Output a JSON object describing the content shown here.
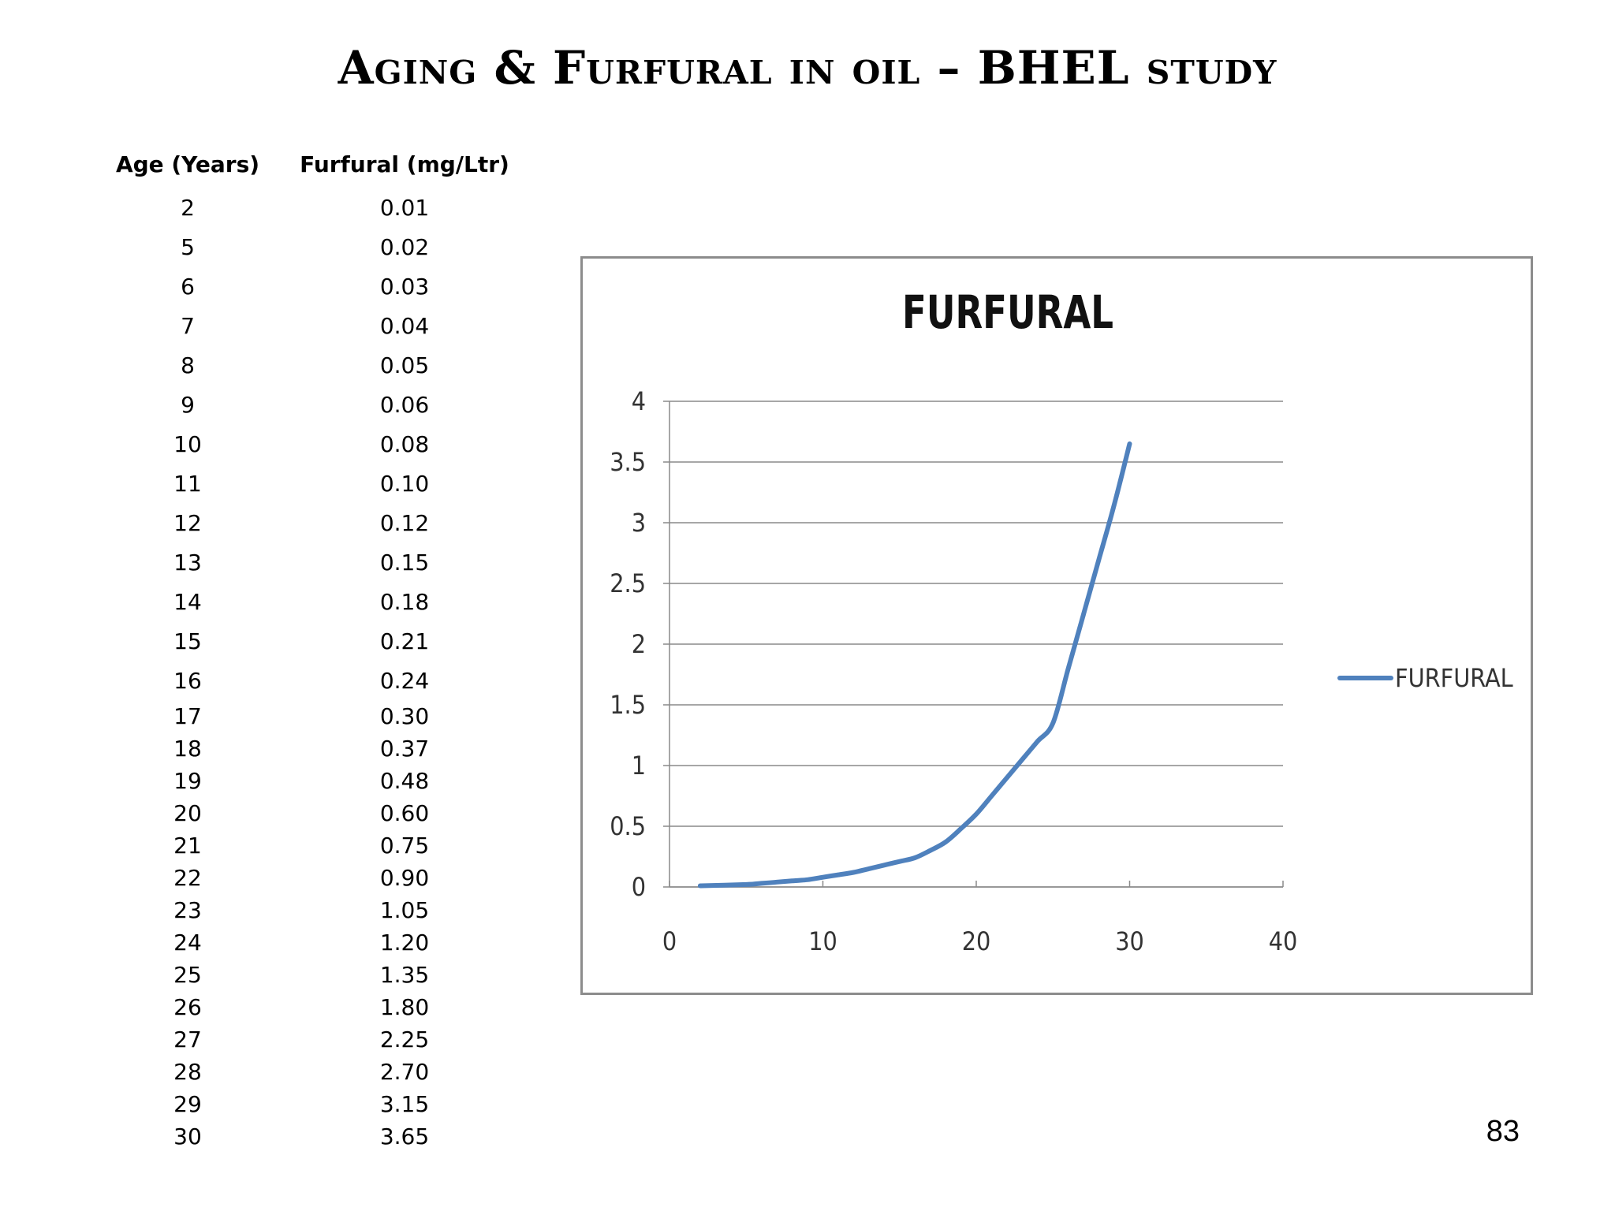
{
  "slide": {
    "title": "Aging & Furfural in oil  – BHEL study",
    "page_number": "83"
  },
  "table": {
    "headers": [
      "Age (Years)",
      "Furfural (mg/Ltr)"
    ],
    "rows": [
      [
        "2",
        "0.01"
      ],
      [
        "5",
        "0.02"
      ],
      [
        "6",
        "0.03"
      ],
      [
        "7",
        "0.04"
      ],
      [
        "8",
        "0.05"
      ],
      [
        "9",
        "0.06"
      ],
      [
        "10",
        "0.08"
      ],
      [
        "11",
        "0.10"
      ],
      [
        "12",
        "0.12"
      ],
      [
        "13",
        "0.15"
      ],
      [
        "14",
        "0.18"
      ],
      [
        "15",
        "0.21"
      ],
      [
        "16",
        "0.24"
      ],
      [
        "17",
        "0.30"
      ],
      [
        "18",
        "0.37"
      ],
      [
        "19",
        "0.48"
      ],
      [
        "20",
        "0.60"
      ],
      [
        "21",
        "0.75"
      ],
      [
        "22",
        "0.90"
      ],
      [
        "23",
        "1.05"
      ],
      [
        "24",
        "1.20"
      ],
      [
        "25",
        "1.35"
      ],
      [
        "26",
        "1.80"
      ],
      [
        "27",
        "2.25"
      ],
      [
        "28",
        "2.70"
      ],
      [
        "29",
        "3.15"
      ],
      [
        "30",
        "3.65"
      ]
    ]
  },
  "chart_data": {
    "type": "scatter",
    "title": "FURFURAL",
    "xlabel": "",
    "ylabel": "",
    "xlim": [
      0,
      40
    ],
    "ylim": [
      0,
      4
    ],
    "x_ticks": [
      "0",
      "10",
      "20",
      "30",
      "40"
    ],
    "y_ticks": [
      "0",
      "0.5",
      "1",
      "1.5",
      "2",
      "2.5",
      "3",
      "3.5",
      "4"
    ],
    "grid": "horizontal",
    "legend": "right",
    "series": [
      {
        "name": "FURFURAL",
        "color": "#4f81bd",
        "x": [
          2,
          5,
          6,
          7,
          8,
          9,
          10,
          11,
          12,
          13,
          14,
          15,
          16,
          17,
          18,
          19,
          20,
          21,
          22,
          23,
          24,
          25,
          26,
          27,
          28,
          29,
          30
        ],
        "y": [
          0.01,
          0.02,
          0.03,
          0.04,
          0.05,
          0.06,
          0.08,
          0.1,
          0.12,
          0.15,
          0.18,
          0.21,
          0.24,
          0.3,
          0.37,
          0.48,
          0.6,
          0.75,
          0.9,
          1.05,
          1.2,
          1.35,
          1.8,
          2.25,
          2.7,
          3.15,
          3.65
        ]
      }
    ]
  }
}
